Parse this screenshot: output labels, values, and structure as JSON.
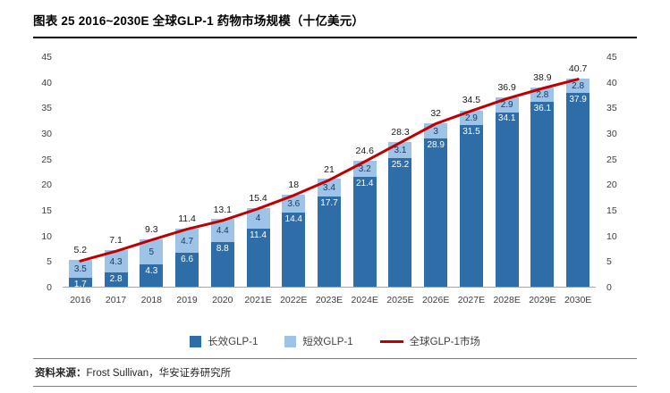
{
  "header": {
    "title": "图表  25 2016~2030E  全球GLP-1 药物市场规模（十亿美元）"
  },
  "footer": {
    "label": "资料来源：",
    "text": "Frost Sullivan，华安证券研究所"
  },
  "chart_data": {
    "type": "bar",
    "stacked": true,
    "title": "2016~2030E 全球GLP-1药物市场规模（十亿美元）",
    "unit": "十亿美元",
    "categories": [
      "2016",
      "2017",
      "2018",
      "2019",
      "2020",
      "2021E",
      "2022E",
      "2023E",
      "2024E",
      "2025E",
      "2026E",
      "2027E",
      "2028E",
      "2029E",
      "2030E"
    ],
    "series": [
      {
        "name": "长效GLP-1",
        "type": "bar",
        "color": "#2E6DA8",
        "values": [
          1.7,
          2.8,
          4.3,
          6.6,
          8.8,
          11.4,
          14.4,
          17.7,
          21.4,
          25.2,
          28.9,
          31.5,
          34.1,
          36.1,
          37.9
        ]
      },
      {
        "name": "短效GLP-1",
        "type": "bar",
        "color": "#9DC3E6",
        "values": [
          3.5,
          4.3,
          5,
          4.7,
          4.4,
          4,
          3.6,
          3.4,
          3.2,
          3.1,
          3,
          2.9,
          2.9,
          2.8,
          2.8
        ]
      },
      {
        "name": "全球GLP-1市场",
        "type": "line",
        "color": "#C00000",
        "values": [
          5.2,
          7.1,
          9.3,
          11.4,
          13.1,
          15.4,
          18,
          21,
          24.6,
          28.3,
          32,
          34.5,
          36.9,
          38.9,
          40.7
        ]
      }
    ],
    "ylim": [
      0,
      45
    ],
    "yticks": [
      0,
      5,
      10,
      15,
      20,
      25,
      30,
      35,
      40,
      45
    ],
    "grid": false,
    "legend_position": "bottom"
  }
}
